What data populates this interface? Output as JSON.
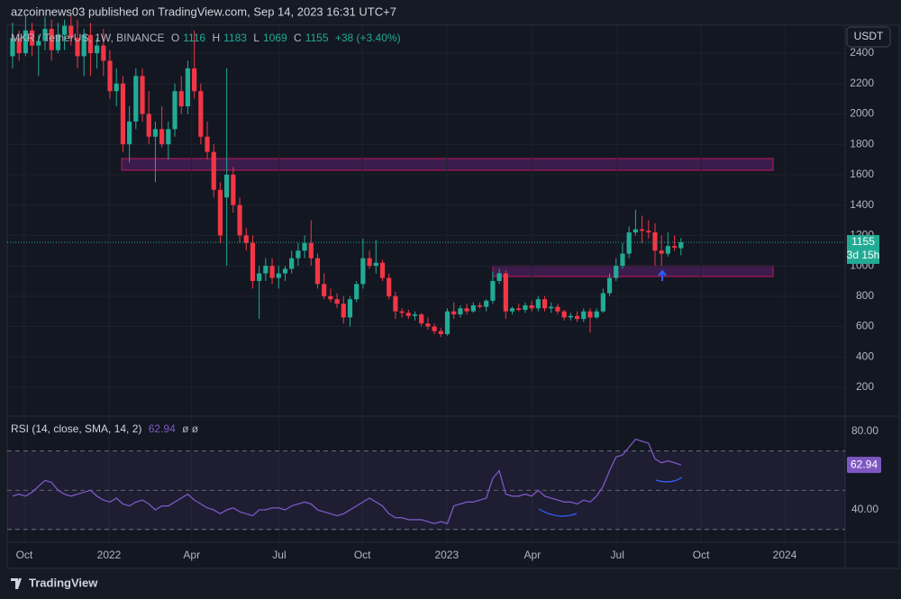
{
  "header": {
    "byline": "azcoinnews03 published on TradingView.com, Sep 14, 2023 16:31 UTC+7"
  },
  "chart_data": [
    {
      "type": "candlestick",
      "symbol": "MKR / TetherUS, 1W, BINANCE",
      "legend_labels": [
        "O",
        "H",
        "L",
        "C"
      ],
      "change": "+38 (+3.40%)",
      "currency": "USDT",
      "countdown": "3d 15h",
      "up_color": "#22ab94",
      "down_color": "#f23645",
      "candles": [
        [
          2380,
          2600,
          2300,
          2500
        ],
        [
          2500,
          2550,
          2350,
          2400
        ],
        [
          2400,
          2650,
          2380,
          2550
        ],
        [
          2550,
          2600,
          2380,
          2450
        ],
        [
          2450,
          2520,
          2250,
          2480
        ],
        [
          2480,
          2640,
          2420,
          2560
        ],
        [
          2560,
          2620,
          2350,
          2420
        ],
        [
          2420,
          2600,
          2400,
          2520
        ],
        [
          2520,
          2620,
          2420,
          2580
        ],
        [
          2580,
          2650,
          2450,
          2500
        ],
        [
          2500,
          2620,
          2300,
          2380
        ],
        [
          2380,
          2560,
          2250,
          2520
        ],
        [
          2520,
          2600,
          2250,
          2400
        ],
        [
          2400,
          2500,
          2300,
          2450
        ],
        [
          2450,
          2560,
          2250,
          2350
        ],
        [
          2350,
          2420,
          2100,
          2150
        ],
        [
          2150,
          2300,
          2050,
          2200
        ],
        [
          2200,
          2250,
          1750,
          1800
        ],
        [
          1800,
          2050,
          1680,
          1950
        ],
        [
          1950,
          2300,
          1900,
          2250
        ],
        [
          2250,
          2300,
          1950,
          2000
        ],
        [
          2000,
          2150,
          1800,
          1850
        ],
        [
          1850,
          1950,
          1550,
          1900
        ],
        [
          1900,
          2050,
          1780,
          1800
        ],
        [
          1800,
          1950,
          1700,
          1900
        ],
        [
          1900,
          2200,
          1850,
          2150
        ],
        [
          2150,
          2250,
          2000,
          2050
        ],
        [
          2050,
          2350,
          2000,
          2300
        ],
        [
          2300,
          2550,
          2100,
          2150
        ],
        [
          2150,
          2200,
          1800,
          1850
        ],
        [
          1850,
          1950,
          1700,
          1750
        ],
        [
          1750,
          1800,
          1450,
          1500
        ],
        [
          1500,
          1550,
          1150,
          1200
        ],
        [
          1450,
          2300,
          1000,
          1600
        ],
        [
          1600,
          1650,
          1350,
          1400
        ],
        [
          1400,
          1450,
          1150,
          1200
        ],
        [
          1200,
          1250,
          1100,
          1150
        ],
        [
          1150,
          1200,
          850,
          900
        ],
        [
          900,
          1000,
          650,
          950
        ],
        [
          950,
          1050,
          900,
          1000
        ],
        [
          1000,
          1050,
          880,
          920
        ],
        [
          920,
          1000,
          850,
          950
        ],
        [
          950,
          1000,
          900,
          980
        ],
        [
          980,
          1100,
          950,
          1050
        ],
        [
          1050,
          1150,
          1000,
          1100
        ],
        [
          1100,
          1200,
          1050,
          1150
        ],
        [
          1150,
          1300,
          1000,
          1050
        ],
        [
          1050,
          1080,
          850,
          880
        ],
        [
          880,
          950,
          780,
          800
        ],
        [
          800,
          850,
          760,
          780
        ],
        [
          780,
          820,
          720,
          750
        ],
        [
          750,
          800,
          620,
          660
        ],
        [
          660,
          800,
          600,
          780
        ],
        [
          780,
          900,
          760,
          880
        ],
        [
          880,
          1180,
          850,
          1050
        ],
        [
          1050,
          1100,
          980,
          1000
        ],
        [
          1000,
          1170,
          950,
          1020
        ],
        [
          1020,
          1040,
          900,
          920
        ],
        [
          920,
          950,
          780,
          800
        ],
        [
          800,
          830,
          650,
          700
        ],
        [
          700,
          720,
          660,
          690
        ],
        [
          690,
          710,
          650,
          670
        ],
        [
          670,
          700,
          640,
          680
        ],
        [
          680,
          690,
          600,
          620
        ],
        [
          620,
          660,
          580,
          600
        ],
        [
          600,
          620,
          550,
          570
        ],
        [
          570,
          590,
          530,
          550
        ],
        [
          550,
          720,
          540,
          700
        ],
        [
          700,
          760,
          650,
          680
        ],
        [
          680,
          740,
          660,
          720
        ],
        [
          720,
          750,
          680,
          700
        ],
        [
          700,
          760,
          690,
          740
        ],
        [
          740,
          760,
          720,
          730
        ],
        [
          730,
          780,
          700,
          770
        ],
        [
          770,
          960,
          750,
          900
        ],
        [
          900,
          980,
          880,
          950
        ],
        [
          950,
          970,
          650,
          700
        ],
        [
          700,
          730,
          680,
          720
        ],
        [
          720,
          750,
          700,
          710
        ],
        [
          710,
          760,
          690,
          740
        ],
        [
          740,
          770,
          700,
          720
        ],
        [
          720,
          800,
          700,
          780
        ],
        [
          780,
          800,
          700,
          720
        ],
        [
          720,
          760,
          690,
          730
        ],
        [
          730,
          750,
          680,
          700
        ],
        [
          700,
          710,
          640,
          660
        ],
        [
          660,
          690,
          640,
          670
        ],
        [
          670,
          700,
          630,
          650
        ],
        [
          650,
          720,
          630,
          700
        ],
        [
          700,
          720,
          560,
          660
        ],
        [
          660,
          720,
          650,
          700
        ],
        [
          700,
          850,
          690,
          820
        ],
        [
          820,
          950,
          800,
          920
        ],
        [
          920,
          1050,
          900,
          1000
        ],
        [
          1000,
          1150,
          980,
          1080
        ],
        [
          1080,
          1260,
          1050,
          1220
        ],
        [
          1220,
          1370,
          1200,
          1240
        ],
        [
          1240,
          1330,
          1150,
          1230
        ],
        [
          1230,
          1300,
          1180,
          1220
        ],
        [
          1220,
          1280,
          1000,
          1100
        ],
        [
          1100,
          1200,
          1000,
          1080
        ],
        [
          1080,
          1220,
          1060,
          1130
        ],
        [
          1130,
          1200,
          1100,
          1120
        ],
        [
          1116,
          1183,
          1069,
          1155
        ]
      ],
      "ylim": [
        22,
        2584
      ],
      "yticks": [
        200,
        400,
        600,
        800,
        1000,
        1200,
        1400,
        1600,
        1800,
        2000,
        2200,
        2400
      ],
      "xlim": [
        -0.83,
        128.3
      ],
      "xticks": [
        {
          "value": 1.8,
          "label": "Oct"
        },
        {
          "value": 14.86,
          "label": "2022"
        },
        {
          "value": 27.6,
          "label": "Apr"
        },
        {
          "value": 41.1,
          "label": "Jul"
        },
        {
          "value": 53.9,
          "label": "Oct"
        },
        {
          "value": 66.9,
          "label": "2023"
        },
        {
          "value": 80.1,
          "label": "Apr"
        },
        {
          "value": 93.2,
          "label": "Jul"
        },
        {
          "value": 106.1,
          "label": "Oct"
        },
        {
          "value": 119.0,
          "label": "2024"
        }
      ]
    },
    {
      "type": "line",
      "title": "RSI (14, close, SMA, 14, 2)",
      "flags": "ø ø",
      "color": "#7e57c2",
      "values": [
        47,
        48,
        47,
        49,
        52,
        55,
        54,
        50,
        48,
        47,
        48,
        49,
        50,
        47,
        45,
        44,
        46,
        43,
        42,
        44,
        45,
        43,
        40,
        42,
        42,
        44,
        46,
        48,
        45,
        43,
        41,
        40,
        38,
        40,
        41,
        39,
        38,
        37,
        40,
        40,
        41,
        41,
        40,
        42,
        43,
        44,
        43,
        40,
        39,
        38,
        37,
        38,
        40,
        42,
        44,
        46,
        44,
        42,
        38,
        36,
        36,
        35,
        35,
        35,
        34,
        33,
        34,
        33,
        42,
        43,
        44,
        44,
        45,
        46,
        56,
        60,
        48,
        47,
        47,
        48,
        47,
        50,
        47,
        46,
        45,
        44,
        44,
        43,
        45,
        44,
        47,
        52,
        60,
        67,
        68,
        72,
        76,
        75,
        74,
        66,
        64,
        65,
        64,
        62.94
      ],
      "ylim": [
        24.4,
        86.4
      ],
      "yticks": [
        {
          "value": 40,
          "label": "40.00"
        },
        {
          "value": 80,
          "label": "80.00"
        }
      ],
      "levels": [
        30,
        50,
        70
      ]
    }
  ],
  "footer": {
    "brand": "TradingView"
  }
}
